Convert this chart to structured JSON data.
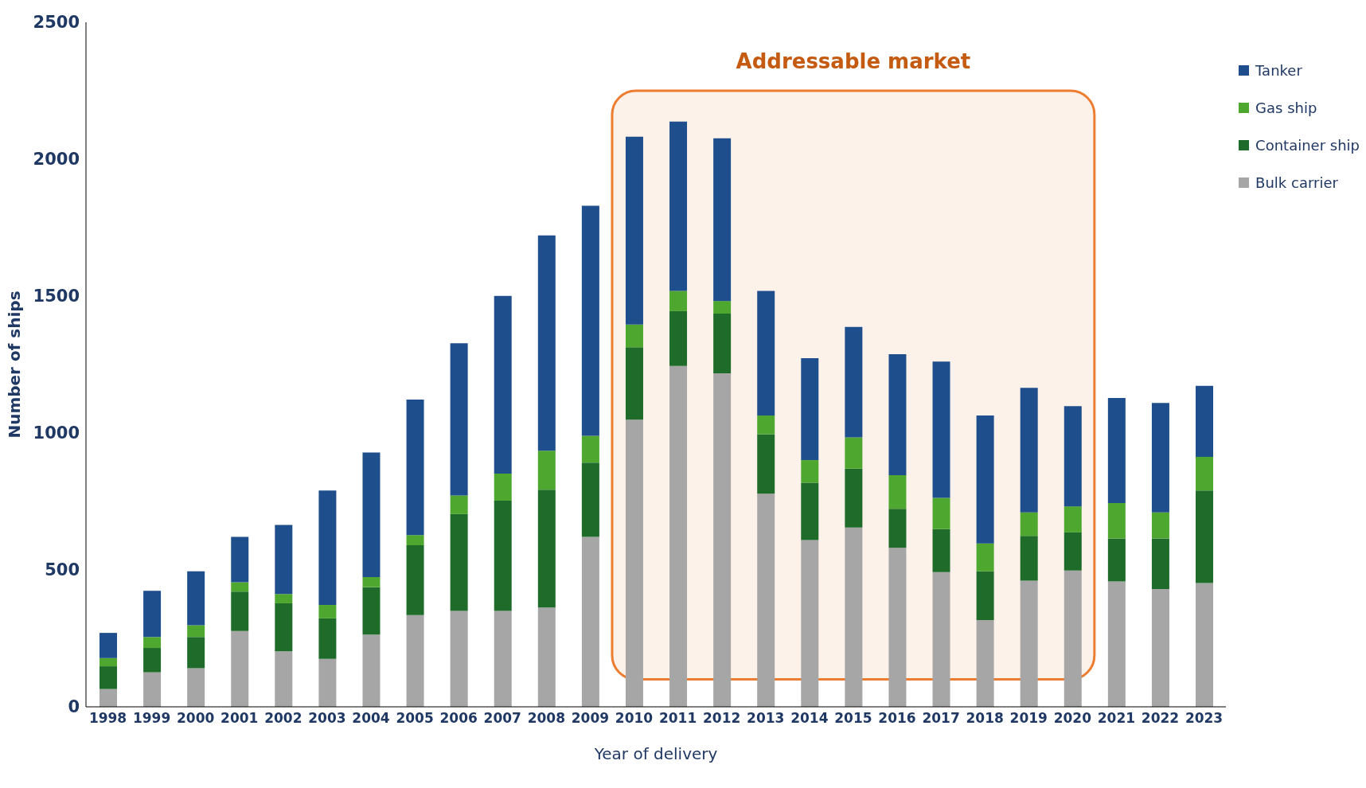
{
  "chart_data": {
    "type": "bar",
    "stacked": true,
    "xlabel": "Year of delivery",
    "ylabel": "Number of ships",
    "categories": [
      "1998",
      "1999",
      "2000",
      "2001",
      "2002",
      "2003",
      "2004",
      "2005",
      "2006",
      "2007",
      "2008",
      "2009",
      "2010",
      "2011",
      "2012",
      "2013",
      "2014",
      "2015",
      "2016",
      "2017",
      "2018",
      "2019",
      "2020",
      "2021",
      "2022",
      "2023"
    ],
    "series": [
      {
        "name": "Bulk carrier",
        "color": "#a6a6a6",
        "values": [
          65,
          126,
          141,
          277,
          203,
          175,
          264,
          335,
          350,
          350,
          363,
          621,
          1049,
          1245,
          1218,
          778,
          609,
          655,
          581,
          492,
          317,
          461,
          498,
          458,
          430,
          452
        ]
      },
      {
        "name": "Container ship",
        "color": "#1e6b2a",
        "values": [
          83,
          89,
          114,
          144,
          175,
          148,
          173,
          255,
          354,
          403,
          430,
          271,
          264,
          200,
          218,
          218,
          209,
          215,
          142,
          157,
          178,
          163,
          139,
          157,
          185,
          338
        ]
      },
      {
        "name": "Gas ship",
        "color": "#4ea72e",
        "values": [
          30,
          40,
          43,
          34,
          34,
          49,
          37,
          37,
          68,
          99,
          142,
          98,
          83,
          74,
          46,
          68,
          83,
          114,
          123,
          114,
          102,
          86,
          95,
          129,
          95,
          123
        ]
      },
      {
        "name": "Tanker",
        "color": "#1f4e8c",
        "values": [
          92,
          169,
          197,
          166,
          252,
          418,
          455,
          495,
          556,
          649,
          787,
          840,
          686,
          618,
          594,
          455,
          372,
          403,
          442,
          498,
          467,
          455,
          366,
          384,
          400,
          259
        ]
      }
    ],
    "ylim": [
      0,
      2500
    ],
    "yticks": [
      0,
      500,
      1000,
      1500,
      2000,
      2500
    ],
    "grid": false,
    "legend": "top right",
    "bands": [
      {
        "axis": "x",
        "from": "2010",
        "to": "2020",
        "label": "Addressable market",
        "color": "#ed7d31"
      }
    ]
  }
}
